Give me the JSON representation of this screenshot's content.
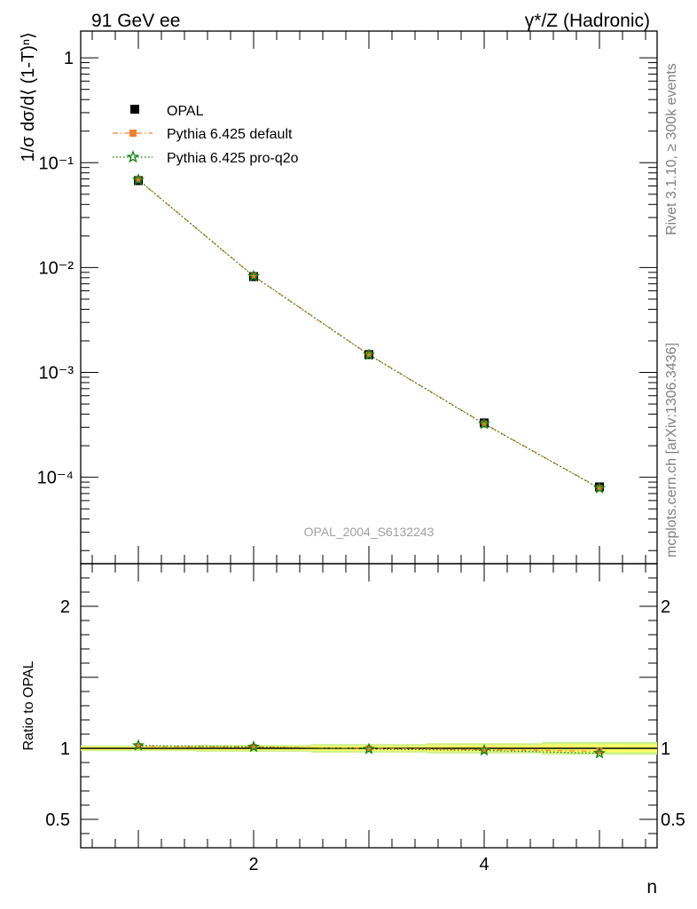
{
  "header": {
    "left": "91 GeV ee",
    "right": "γ*/Z (Hadronic)"
  },
  "side_labels": {
    "rivet": "Rivet 3.1.10, ≥ 300k events",
    "mcplots": "mcplots.cern.ch [arXiv:1306.3436]"
  },
  "analysis_label": "OPAL_2004_S6132243",
  "chart_data": [
    {
      "type": "scatter",
      "title": "",
      "ylabel": "1/σ dσ/d⟨ (1-T)ⁿ⟩",
      "xlabel": "",
      "yscale": "log",
      "xlim": [
        0.5,
        5.5
      ],
      "ylim": [
        1.5e-05,
        1.8
      ],
      "y_ticks": [
        {
          "value": 1,
          "label": "1"
        },
        {
          "value": 0.1,
          "label": "10⁻¹"
        },
        {
          "value": 0.01,
          "label": "10⁻²"
        },
        {
          "value": 0.001,
          "label": "10⁻³"
        },
        {
          "value": 0.0001,
          "label": "10⁻⁴"
        }
      ],
      "x": [
        1,
        2,
        3,
        4,
        5
      ],
      "legend_position": "top-left",
      "series": [
        {
          "name": "OPAL",
          "marker": "square",
          "color": "#000000",
          "values": [
            0.0675,
            0.0082,
            0.00148,
            0.00033,
            8.1e-05
          ]
        },
        {
          "name": "Pythia 6.425 default",
          "marker": "square",
          "color": "#f08030",
          "line": "dash-dot",
          "values": [
            0.0685,
            0.0083,
            0.00148,
            0.000325,
            7.9e-05
          ]
        },
        {
          "name": "Pythia 6.425 pro-q2o",
          "marker": "star",
          "color": "#108010",
          "line": "dotted",
          "values": [
            0.0688,
            0.00828,
            0.00147,
            0.000322,
            7.85e-05
          ]
        }
      ]
    },
    {
      "type": "scatter",
      "title": "",
      "ylabel": "Ratio to OPAL",
      "xlabel": "n",
      "xlim": [
        0.5,
        5.5
      ],
      "ylim": [
        0.3,
        2.3
      ],
      "y_ticks": [
        {
          "value": 0.5,
          "label": "0.5"
        },
        {
          "value": 1,
          "label": "1"
        },
        {
          "value": 2,
          "label": "2"
        }
      ],
      "x_ticks": [
        {
          "value": 2,
          "label": "2"
        },
        {
          "value": 4,
          "label": "4"
        }
      ],
      "x": [
        1,
        2,
        3,
        4,
        5
      ],
      "band_colors": {
        "inner": "#ffff66",
        "outer": "#ccf08a"
      },
      "band_inner_halfwidth": [
        0.012,
        0.014,
        0.018,
        0.022,
        0.028
      ],
      "band_outer_halfwidth": [
        0.02,
        0.024,
        0.03,
        0.036,
        0.045
      ],
      "series": [
        {
          "name": "Pythia 6.425 default",
          "color": "#f08030",
          "values": [
            1.015,
            1.01,
            1.0,
            0.99,
            0.98
          ]
        },
        {
          "name": "Pythia 6.425 pro-q2o",
          "color": "#108010",
          "values": [
            1.02,
            1.01,
            0.995,
            0.985,
            0.965
          ]
        }
      ]
    }
  ]
}
